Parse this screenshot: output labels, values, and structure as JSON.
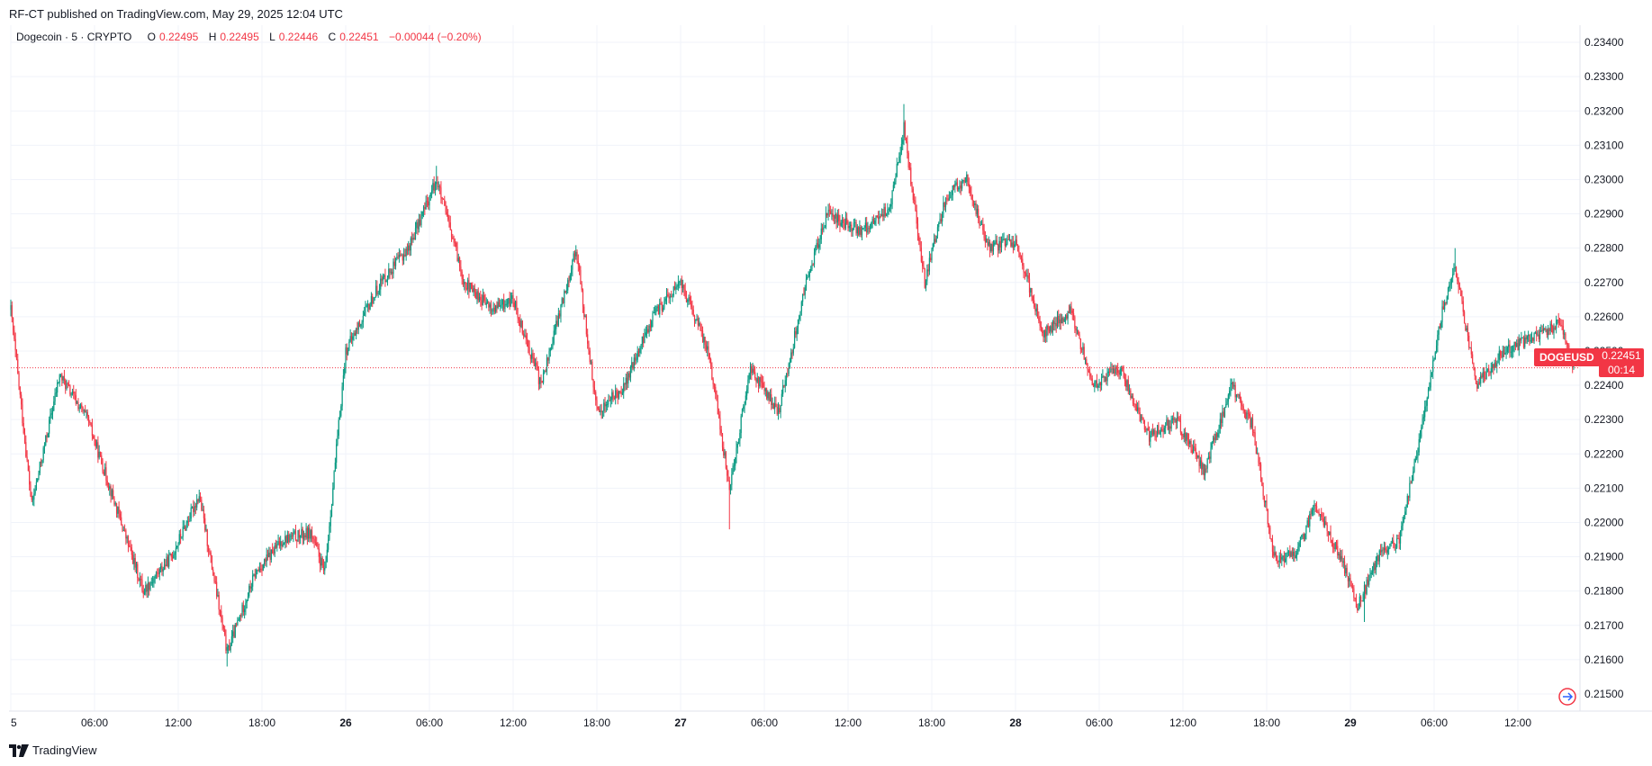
{
  "header": {
    "published": "RF-CT published on TradingView.com, May 29, 2025 12:04 UTC"
  },
  "legend": {
    "symbol": "Dogecoin · 5 · CRYPTO",
    "o_label": "O",
    "o_value": "0.22495",
    "h_label": "H",
    "h_value": "0.22495",
    "l_label": "L",
    "l_value": "0.22446",
    "c_label": "C",
    "c_value": "0.22451",
    "change": "−0.00044 (−0.20%)"
  },
  "price_tag": {
    "symbol": "DOGEUSD",
    "price": "0.22451",
    "countdown": "00:14"
  },
  "footer": {
    "brand": "TradingView"
  },
  "colors": {
    "up": "#089981",
    "down": "#f23645",
    "grid": "#f0f3fa",
    "text": "#131722"
  },
  "chart_data": {
    "type": "candlestick",
    "title": "Dogecoin · 5 · CRYPTO",
    "symbol": "DOGEUSD",
    "interval": "5",
    "y_tick_labels": [
      "0.21500",
      "0.21600",
      "0.21700",
      "0.21800",
      "0.21900",
      "0.22000",
      "0.22100",
      "0.22200",
      "0.22300",
      "0.22400",
      "0.22500",
      "0.22600",
      "0.22700",
      "0.22800",
      "0.22900",
      "0.23000",
      "0.23100",
      "0.23200",
      "0.23300",
      "0.23400"
    ],
    "x_tick_labels": [
      "5",
      "06:00",
      "12:00",
      "18:00",
      "26",
      "06:00",
      "12:00",
      "18:00",
      "27",
      "06:00",
      "12:00",
      "18:00",
      "28",
      "06:00",
      "12:00",
      "18:00",
      "29",
      "06:00",
      "12:00"
    ],
    "bold_x_ticks": [
      "26",
      "27",
      "28",
      "29"
    ],
    "ylim": [
      0.2145,
      0.2345
    ],
    "last_price": 0.22451,
    "grid": true,
    "price_path": [
      {
        "t": 0,
        "p": 0.2262
      },
      {
        "t": 1.5,
        "p": 0.2205
      },
      {
        "t": 3.5,
        "p": 0.2243
      },
      {
        "t": 5.5,
        "p": 0.223
      },
      {
        "t": 7.5,
        "p": 0.2205
      },
      {
        "t": 9.5,
        "p": 0.218
      },
      {
        "t": 11.5,
        "p": 0.219
      },
      {
        "t": 13.5,
        "p": 0.2208
      },
      {
        "t": 15.5,
        "p": 0.2162
      },
      {
        "t": 17.5,
        "p": 0.2185
      },
      {
        "t": 19.5,
        "p": 0.2195
      },
      {
        "t": 21.5,
        "p": 0.2197
      },
      {
        "t": 22.5,
        "p": 0.2185
      },
      {
        "t": 24,
        "p": 0.225
      },
      {
        "t": 25.5,
        "p": 0.2262
      },
      {
        "t": 26.5,
        "p": 0.227
      },
      {
        "t": 28.5,
        "p": 0.228
      },
      {
        "t": 30.5,
        "p": 0.23
      },
      {
        "t": 32.5,
        "p": 0.227
      },
      {
        "t": 34.5,
        "p": 0.2262
      },
      {
        "t": 36,
        "p": 0.2265
      },
      {
        "t": 38,
        "p": 0.224
      },
      {
        "t": 40.5,
        "p": 0.228
      },
      {
        "t": 42,
        "p": 0.2232
      },
      {
        "t": 44,
        "p": 0.224
      },
      {
        "t": 46,
        "p": 0.226
      },
      {
        "t": 48,
        "p": 0.227
      },
      {
        "t": 50,
        "p": 0.225
      },
      {
        "t": 51.5,
        "p": 0.221
      },
      {
        "t": 53,
        "p": 0.2245
      },
      {
        "t": 55,
        "p": 0.2232
      },
      {
        "t": 57,
        "p": 0.227
      },
      {
        "t": 58.5,
        "p": 0.229
      },
      {
        "t": 61,
        "p": 0.2285
      },
      {
        "t": 63,
        "p": 0.2292
      },
      {
        "t": 64,
        "p": 0.2315
      },
      {
        "t": 65.5,
        "p": 0.227
      },
      {
        "t": 67,
        "p": 0.2295
      },
      {
        "t": 68.5,
        "p": 0.23
      },
      {
        "t": 70,
        "p": 0.228
      },
      {
        "t": 72,
        "p": 0.2282
      },
      {
        "t": 74,
        "p": 0.2255
      },
      {
        "t": 76,
        "p": 0.2262
      },
      {
        "t": 77.5,
        "p": 0.224
      },
      {
        "t": 79.5,
        "p": 0.2245
      },
      {
        "t": 81.5,
        "p": 0.2225
      },
      {
        "t": 83.5,
        "p": 0.223
      },
      {
        "t": 85.5,
        "p": 0.2215
      },
      {
        "t": 87.5,
        "p": 0.224
      },
      {
        "t": 89,
        "p": 0.2228
      },
      {
        "t": 90.5,
        "p": 0.219
      },
      {
        "t": 92,
        "p": 0.219
      },
      {
        "t": 93.5,
        "p": 0.2205
      },
      {
        "t": 95.5,
        "p": 0.2188
      },
      {
        "t": 96.5,
        "p": 0.2175
      },
      {
        "t": 98,
        "p": 0.219
      },
      {
        "t": 99.5,
        "p": 0.2195
      },
      {
        "t": 101,
        "p": 0.2225
      },
      {
        "t": 102.5,
        "p": 0.226
      },
      {
        "t": 103.5,
        "p": 0.2275
      },
      {
        "t": 105,
        "p": 0.224
      },
      {
        "t": 107,
        "p": 0.225
      },
      {
        "t": 109.5,
        "p": 0.2255
      },
      {
        "t": 111,
        "p": 0.2258
      },
      {
        "t": 112,
        "p": 0.22451
      }
    ],
    "notable_extremes": [
      {
        "t": 15.5,
        "low": 0.2158
      },
      {
        "t": 30.5,
        "high": 0.2304
      },
      {
        "t": 51.5,
        "low": 0.2198
      },
      {
        "t": 64,
        "high": 0.2322
      },
      {
        "t": 97,
        "low": 0.2171
      },
      {
        "t": 103.5,
        "high": 0.228
      }
    ]
  }
}
